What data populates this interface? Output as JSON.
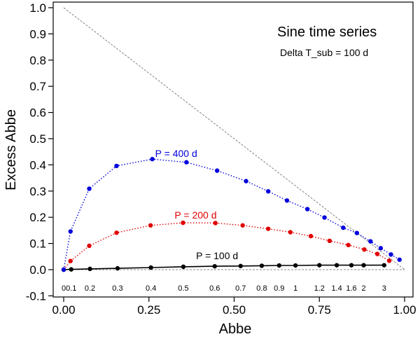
{
  "chart_data": {
    "type": "line",
    "xlabel": "Abbe",
    "ylabel": "Excess Abbe",
    "xlim": [
      0.0,
      1.0
    ],
    "ylim": [
      -0.1,
      1.0
    ],
    "x_ticks": [
      "0.00",
      "0.25",
      "0.50",
      "0.75",
      "1.00"
    ],
    "x_tick_values": [
      0.0,
      0.25,
      0.5,
      0.75,
      1.0
    ],
    "y_ticks": [
      "-0.1",
      "0.0",
      "0.1",
      "0.2",
      "0.3",
      "0.4",
      "0.5",
      "0.6",
      "0.7",
      "0.8",
      "0.9",
      "1.0"
    ],
    "y_tick_values": [
      -0.1,
      0.0,
      0.1,
      0.2,
      0.3,
      0.4,
      0.5,
      0.6,
      0.7,
      0.8,
      0.9,
      1.0
    ],
    "annotations": {
      "title": "Sine time series",
      "subtitle": "Delta T_sub = 100 d"
    },
    "reference_lines": [
      {
        "name": "diagonal",
        "x": [
          0.0,
          1.0
        ],
        "y": [
          1.0,
          0.0
        ],
        "style": "dashed"
      },
      {
        "name": "zero",
        "x": [
          0.0,
          1.0
        ],
        "y": [
          0.0,
          0.0
        ],
        "style": "dashed"
      }
    ],
    "bottom_labels": [
      {
        "text": "0",
        "x": 0.0
      },
      {
        "text": "0.1",
        "x": 0.022
      },
      {
        "text": "0.2",
        "x": 0.077
      },
      {
        "text": "0.3",
        "x": 0.158
      },
      {
        "text": "0.4",
        "x": 0.256
      },
      {
        "text": "0.5",
        "x": 0.351
      },
      {
        "text": "0.6",
        "x": 0.443
      },
      {
        "text": "0.7",
        "x": 0.519
      },
      {
        "text": "0.8",
        "x": 0.581
      },
      {
        "text": "0.9",
        "x": 0.632
      },
      {
        "text": "1",
        "x": 0.68
      },
      {
        "text": "1.2",
        "x": 0.75
      },
      {
        "text": "1.4",
        "x": 0.801
      },
      {
        "text": "1.6",
        "x": 0.844
      },
      {
        "text": "2",
        "x": 0.88
      },
      {
        "text": "3",
        "x": 0.94
      }
    ],
    "series": [
      {
        "name": "P = 100 d",
        "color": "#000000",
        "line_style": "solid",
        "label_at": [
          0.45,
          0.04
        ],
        "x": [
          0.0,
          0.022,
          0.077,
          0.158,
          0.256,
          0.351,
          0.443,
          0.519,
          0.581,
          0.632,
          0.68,
          0.75,
          0.801,
          0.844,
          0.88,
          0.94
        ],
        "y": [
          0.0,
          0.001,
          0.003,
          0.005,
          0.008,
          0.011,
          0.013,
          0.014,
          0.015,
          0.016,
          0.016,
          0.017,
          0.017,
          0.017,
          0.017,
          0.017
        ]
      },
      {
        "name": "P = 200 d",
        "color": "#e00000",
        "line_style": "dotted",
        "label_at": [
          0.387,
          0.195
        ],
        "x": [
          0.0,
          0.02,
          0.075,
          0.155,
          0.255,
          0.35,
          0.445,
          0.525,
          0.6,
          0.665,
          0.725,
          0.78,
          0.835,
          0.882,
          0.92,
          0.955
        ],
        "y": [
          0.0,
          0.033,
          0.091,
          0.141,
          0.169,
          0.179,
          0.178,
          0.169,
          0.156,
          0.143,
          0.128,
          0.11,
          0.094,
          0.077,
          0.06,
          0.034
        ]
      },
      {
        "name": "P = 400 d",
        "color": "#0000dd",
        "line_style": "dotted",
        "label_at": [
          0.33,
          0.43
        ],
        "x": [
          0.0,
          0.02,
          0.075,
          0.155,
          0.26,
          0.36,
          0.45,
          0.535,
          0.6,
          0.655,
          0.715,
          0.765,
          0.82,
          0.86,
          0.9,
          0.93,
          0.96,
          0.985
        ],
        "y": [
          0.0,
          0.146,
          0.309,
          0.396,
          0.422,
          0.41,
          0.378,
          0.338,
          0.299,
          0.264,
          0.231,
          0.199,
          0.16,
          0.14,
          0.108,
          0.082,
          0.058,
          0.038
        ]
      }
    ]
  }
}
